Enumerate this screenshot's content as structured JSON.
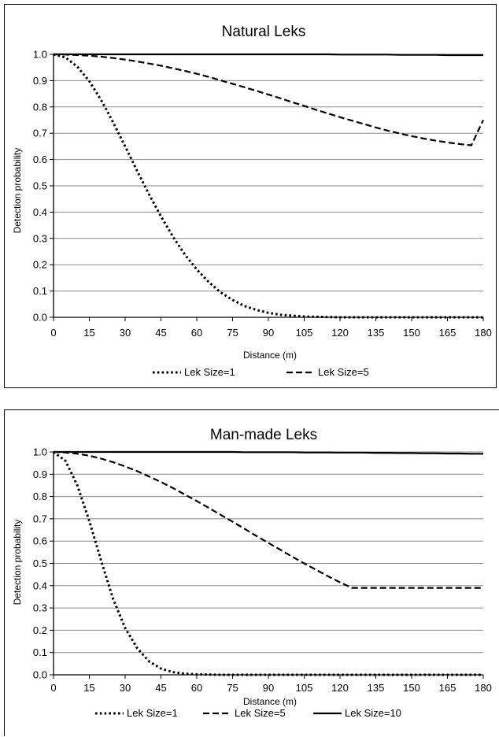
{
  "chart_data": [
    {
      "type": "line",
      "title": "Natural Leks",
      "xlabel": "Distance (m)",
      "ylabel": "Detection probability",
      "xlim": [
        0,
        180
      ],
      "ylim": [
        0,
        1.0
      ],
      "xticks": [
        "0",
        "15",
        "30",
        "45",
        "60",
        "75",
        "90",
        "105",
        "120",
        "135",
        "150",
        "165",
        "180"
      ],
      "yticks": [
        "0.0",
        "0.1",
        "0.2",
        "0.3",
        "0.4",
        "0.5",
        "0.6",
        "0.7",
        "0.8",
        "0.9",
        "1.0"
      ],
      "grid": "horizontal",
      "legend_position": "bottom",
      "legend": [
        "Lek Size=1",
        "Lek Size=5"
      ],
      "x": [
        0,
        5,
        10,
        15,
        20,
        25,
        30,
        35,
        40,
        45,
        50,
        55,
        60,
        65,
        70,
        75,
        80,
        85,
        90,
        95,
        100,
        105,
        110,
        115,
        120,
        125,
        130,
        135,
        140,
        145,
        150,
        155,
        160,
        165,
        170,
        175,
        180
      ],
      "series": [
        {
          "name": "Lek Size=1",
          "style": "dotted",
          "values": [
            1.0,
            0.988,
            0.953,
            0.898,
            0.825,
            0.741,
            0.65,
            0.557,
            0.468,
            0.384,
            0.307,
            0.239,
            0.182,
            0.134,
            0.095,
            0.066,
            0.043,
            0.028,
            0.017,
            0.01,
            0.006,
            0.003,
            0.002,
            0.001,
            0.0,
            0.0,
            0.0,
            0.0,
            0.0,
            0.0,
            0.0,
            0.0,
            0.0,
            0.0,
            0.0,
            0.0,
            0.0
          ]
        },
        {
          "name": "Lek Size=5",
          "style": "dashed",
          "values": [
            1.0,
            0.999,
            0.997,
            0.995,
            0.991,
            0.986,
            0.98,
            0.973,
            0.965,
            0.957,
            0.947,
            0.937,
            0.926,
            0.914,
            0.901,
            0.888,
            0.875,
            0.861,
            0.847,
            0.833,
            0.818,
            0.804,
            0.789,
            0.775,
            0.761,
            0.748,
            0.735,
            0.722,
            0.71,
            0.699,
            0.689,
            0.68,
            0.672,
            0.665,
            0.659,
            0.654,
            0.75
          ]
        },
        {
          "style": "solid",
          "values": [
            1.0,
            1.0,
            1.0,
            1.0,
            1.0,
            1.0,
            1.0,
            1.0,
            1.0,
            1.0,
            1.0,
            1.0,
            1.0,
            1.0,
            1.0,
            1.0,
            1.0,
            1.0,
            1.0,
            1.0,
            1.0,
            1.0,
            1.0,
            1.0,
            0.999,
            0.999,
            0.999,
            0.999,
            0.999,
            0.998,
            0.998,
            0.998,
            0.998,
            0.997,
            0.997,
            0.997,
            0.997
          ]
        }
      ]
    },
    {
      "type": "line",
      "title": "Man-made Leks",
      "xlabel": "Distance (m)",
      "ylabel": "Detection probability",
      "xlim": [
        0,
        180
      ],
      "ylim": [
        0,
        1.0
      ],
      "xticks": [
        "0",
        "15",
        "30",
        "45",
        "60",
        "75",
        "90",
        "105",
        "120",
        "135",
        "150",
        "165",
        "180"
      ],
      "yticks": [
        "0.0",
        "0.1",
        "0.2",
        "0.3",
        "0.4",
        "0.5",
        "0.6",
        "0.7",
        "0.8",
        "0.9",
        "1.0"
      ],
      "grid": "horizontal",
      "legend_position": "bottom",
      "legend": [
        "Lek Size=1",
        "Lek Size=5",
        "Lek Size=10"
      ],
      "x": [
        0,
        5,
        10,
        15,
        20,
        25,
        30,
        35,
        40,
        45,
        50,
        55,
        60,
        65,
        70,
        75,
        80,
        85,
        90,
        95,
        100,
        105,
        110,
        115,
        120,
        125,
        130,
        135,
        140,
        145,
        150,
        155,
        160,
        165,
        170,
        175,
        180
      ],
      "series": [
        {
          "name": "Lek Size=1",
          "style": "dotted",
          "values": [
            1.0,
            0.96,
            0.85,
            0.69,
            0.51,
            0.34,
            0.21,
            0.12,
            0.06,
            0.028,
            0.012,
            0.005,
            0.002,
            0.001,
            0.0,
            0.0,
            0.0,
            0.0,
            0.0,
            0.0,
            0.0,
            0.0,
            0.0,
            0.0,
            0.0,
            0.0,
            0.0,
            0.0,
            0.0,
            0.0,
            0.0,
            0.0,
            0.0,
            0.0,
            0.0,
            0.0,
            0.0
          ]
        },
        {
          "name": "Lek Size=5",
          "style": "dashed",
          "values": [
            1.0,
            0.998,
            0.992,
            0.983,
            0.97,
            0.954,
            0.935,
            0.914,
            0.89,
            0.865,
            0.838,
            0.809,
            0.78,
            0.749,
            0.718,
            0.687,
            0.655,
            0.623,
            0.592,
            0.561,
            0.53,
            0.5,
            0.471,
            0.442,
            0.415,
            0.39,
            0.39,
            0.39,
            0.39,
            0.39,
            0.39,
            0.39,
            0.39,
            0.39,
            0.39,
            0.39,
            0.39
          ]
        },
        {
          "name": "Lek Size=10",
          "style": "solid",
          "values": [
            1.0,
            1.0,
            1.0,
            1.0,
            1.0,
            1.0,
            1.0,
            1.0,
            1.0,
            1.0,
            1.0,
            1.0,
            1.0,
            1.0,
            1.0,
            1.0,
            0.999,
            0.999,
            0.999,
            0.999,
            0.999,
            0.998,
            0.998,
            0.998,
            0.997,
            0.997,
            0.997,
            0.996,
            0.996,
            0.995,
            0.995,
            0.994,
            0.994,
            0.993,
            0.993,
            0.992,
            0.992
          ]
        }
      ]
    }
  ]
}
